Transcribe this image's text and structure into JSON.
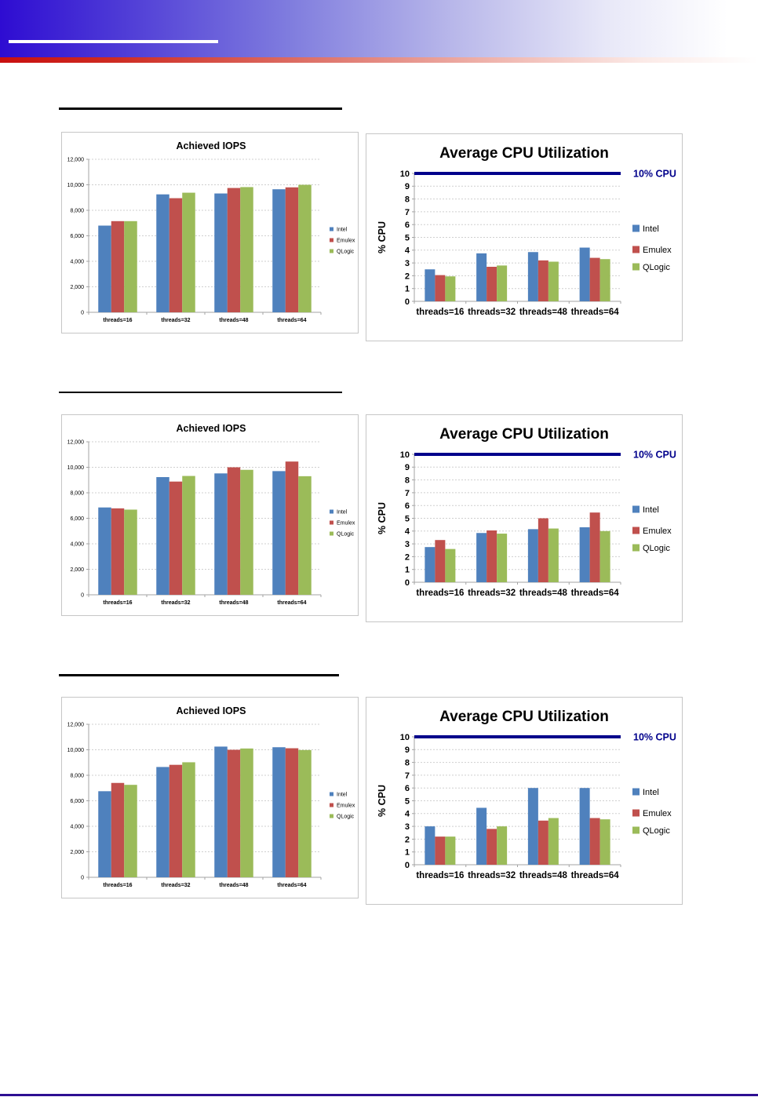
{
  "header": {
    "banner": {
      "gradient_start_color": "#2E0CD2",
      "gradient_end_color": "#FFFFFF",
      "title_underline_color": "#FFFFFF"
    },
    "red_strip": {
      "gradient_start_color": "#C90F0F",
      "gradient_end_color": "#FFFFFF"
    }
  },
  "footer": {
    "rule_color": "#2D0E92"
  },
  "colors": {
    "intel": "#4F81BD",
    "emulex": "#C0504D",
    "qlogic": "#9BBB59",
    "reference_line": "#00008B",
    "gridline": "#CFCFCF",
    "axis": "#A3A3A3"
  },
  "chart_data": [
    {
      "type": "bar",
      "variant": "small",
      "row": 1,
      "title": "Achieved IOPS",
      "categories": [
        "threads=16",
        "threads=32",
        "threads=48",
        "threads=64"
      ],
      "series": [
        {
          "name": "Intel",
          "color": "#4F81BD",
          "values": [
            6800,
            9250,
            9320,
            9650
          ]
        },
        {
          "name": "Emulex",
          "color": "#C0504D",
          "values": [
            7150,
            8950,
            9750,
            9800
          ]
        },
        {
          "name": "QLogic",
          "color": "#9BBB59",
          "values": [
            7150,
            9380,
            9820,
            10000
          ]
        }
      ],
      "ylim": [
        0,
        12000
      ],
      "ytick_step": 2000,
      "ytick_labels": [
        "0",
        "2,000",
        "4,000",
        "6,000",
        "8,000",
        "10,000",
        "12,000"
      ],
      "grid": "dashed-horizontal",
      "legend_position": "right"
    },
    {
      "type": "bar",
      "variant": "large",
      "row": 1,
      "title": "Average CPU Utilization",
      "ylabel": "% CPU",
      "categories": [
        "threads=16",
        "threads=32",
        "threads=48",
        "threads=64"
      ],
      "series": [
        {
          "name": "Intel",
          "color": "#4F81BD",
          "values": [
            2.5,
            3.75,
            3.85,
            4.2
          ]
        },
        {
          "name": "Emulex",
          "color": "#C0504D",
          "values": [
            2.05,
            2.7,
            3.2,
            3.4
          ]
        },
        {
          "name": "QLogic",
          "color": "#9BBB59",
          "values": [
            1.95,
            2.8,
            3.1,
            3.3
          ]
        }
      ],
      "ylim": [
        0,
        10
      ],
      "ytick_step": 1,
      "ytick_labels": [
        "0",
        "1",
        "2",
        "3",
        "4",
        "5",
        "6",
        "7",
        "8",
        "9",
        "10"
      ],
      "ref_line": {
        "value": 10,
        "label": "10% CPU",
        "color": "#00008B"
      },
      "grid": "dashed-horizontal",
      "legend_position": "right"
    },
    {
      "type": "bar",
      "variant": "small",
      "row": 2,
      "title": "Achieved IOPS",
      "categories": [
        "threads=16",
        "threads=32",
        "threads=48",
        "threads=64"
      ],
      "series": [
        {
          "name": "Intel",
          "color": "#4F81BD",
          "values": [
            6850,
            9230,
            9520,
            9700
          ]
        },
        {
          "name": "Emulex",
          "color": "#C0504D",
          "values": [
            6780,
            8880,
            10000,
            10450
          ]
        },
        {
          "name": "QLogic",
          "color": "#9BBB59",
          "values": [
            6680,
            9320,
            9800,
            9300
          ]
        }
      ],
      "ylim": [
        0,
        12000
      ],
      "ytick_step": 2000,
      "ytick_labels": [
        "0",
        "2,000",
        "4,000",
        "6,000",
        "8,000",
        "10,000",
        "12,000"
      ],
      "grid": "dashed-horizontal",
      "legend_position": "right"
    },
    {
      "type": "bar",
      "variant": "large",
      "row": 2,
      "title": "Average CPU Utilization",
      "ylabel": "% CPU",
      "categories": [
        "threads=16",
        "threads=32",
        "threads=48",
        "threads=64"
      ],
      "series": [
        {
          "name": "Intel",
          "color": "#4F81BD",
          "values": [
            2.75,
            3.85,
            4.15,
            4.3
          ]
        },
        {
          "name": "Emulex",
          "color": "#C0504D",
          "values": [
            3.3,
            4.05,
            5.0,
            5.45
          ]
        },
        {
          "name": "QLogic",
          "color": "#9BBB59",
          "values": [
            2.6,
            3.8,
            4.2,
            4.0
          ]
        }
      ],
      "ylim": [
        0,
        10
      ],
      "ytick_step": 1,
      "ytick_labels": [
        "0",
        "1",
        "2",
        "3",
        "4",
        "5",
        "6",
        "7",
        "8",
        "9",
        "10"
      ],
      "ref_line": {
        "value": 10,
        "label": "10% CPU",
        "color": "#00008B"
      },
      "grid": "dashed-horizontal",
      "legend_position": "right"
    },
    {
      "type": "bar",
      "variant": "small",
      "row": 3,
      "title": "Achieved IOPS",
      "categories": [
        "threads=16",
        "threads=32",
        "threads=48",
        "threads=64"
      ],
      "series": [
        {
          "name": "Intel",
          "color": "#4F81BD",
          "values": [
            6750,
            8650,
            10250,
            10200
          ]
        },
        {
          "name": "Emulex",
          "color": "#C0504D",
          "values": [
            7400,
            8820,
            10000,
            10120
          ]
        },
        {
          "name": "QLogic",
          "color": "#9BBB59",
          "values": [
            7250,
            9020,
            10100,
            9980
          ]
        }
      ],
      "ylim": [
        0,
        12000
      ],
      "ytick_step": 2000,
      "ytick_labels": [
        "0",
        "2,000",
        "4,000",
        "6,000",
        "8,000",
        "10,000",
        "12,000"
      ],
      "grid": "dashed-horizontal",
      "legend_position": "right"
    },
    {
      "type": "bar",
      "variant": "large",
      "row": 3,
      "title": "Average CPU Utilization",
      "ylabel": "% CPU",
      "categories": [
        "threads=16",
        "threads=32",
        "threads=48",
        "threads=64"
      ],
      "series": [
        {
          "name": "Intel",
          "color": "#4F81BD",
          "values": [
            3.0,
            4.45,
            6.0,
            6.0
          ]
        },
        {
          "name": "Emulex",
          "color": "#C0504D",
          "values": [
            2.2,
            2.8,
            3.45,
            3.65
          ]
        },
        {
          "name": "QLogic",
          "color": "#9BBB59",
          "values": [
            2.2,
            3.0,
            3.65,
            3.55
          ]
        }
      ],
      "ylim": [
        0,
        10
      ],
      "ytick_step": 1,
      "ytick_labels": [
        "0",
        "1",
        "2",
        "3",
        "4",
        "5",
        "6",
        "7",
        "8",
        "9",
        "10"
      ],
      "ref_line": {
        "value": 10,
        "label": "10% CPU",
        "color": "#00008B"
      },
      "grid": "dashed-horizontal",
      "legend_position": "right"
    }
  ]
}
